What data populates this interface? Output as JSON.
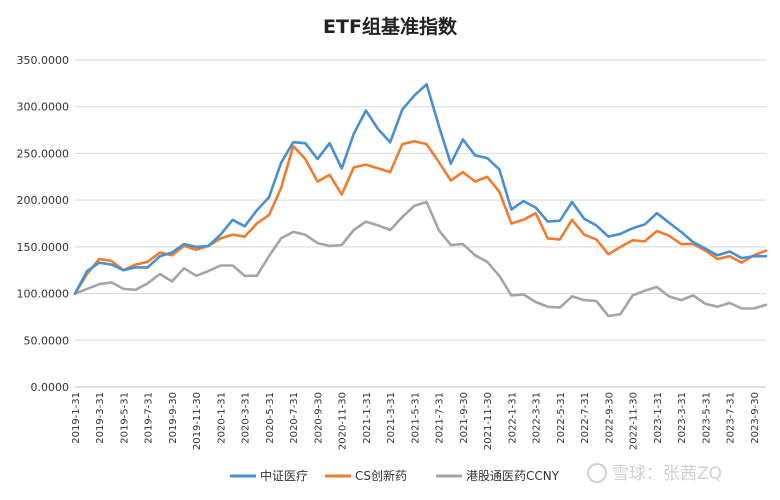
{
  "chart_data": {
    "type": "line",
    "title": "ETF组基准指数",
    "xlabel": "",
    "ylabel": "",
    "ylim": [
      0,
      350
    ],
    "y_ticks": [
      0,
      50,
      100,
      150,
      200,
      250,
      300,
      350
    ],
    "y_tick_labels": [
      "0.0000",
      "50.0000",
      "100.0000",
      "150.0000",
      "200.0000",
      "250.0000",
      "300.0000",
      "350.0000"
    ],
    "grid": true,
    "legend_position": "bottom",
    "x_labels": [
      "2019-1-31",
      "2019-3-31",
      "2019-5-31",
      "2019-7-31",
      "2019-9-30",
      "2019-11-30",
      "2020-1-31",
      "2020-3-31",
      "2020-5-31",
      "2020-7-31",
      "2020-9-30",
      "2020-11-30",
      "2021-1-31",
      "2021-3-31",
      "2021-5-31",
      "2021-7-31",
      "2021-9-30",
      "2021-11-30",
      "2022-1-31",
      "2022-3-31",
      "2022-5-31",
      "2022-7-31",
      "2022-9-30",
      "2022-11-30",
      "2023-1-31",
      "2023-3-31",
      "2023-5-31",
      "2023-7-31",
      "2023-9-30"
    ],
    "series": [
      {
        "name": "中证医疗",
        "color": "#4a8fd0",
        "values": [
          100,
          124,
          133,
          131,
          125,
          128,
          128,
          140,
          144,
          153,
          150,
          151,
          163,
          179,
          172,
          189,
          203,
          240,
          262,
          261,
          244,
          261,
          234,
          271,
          296,
          276,
          262,
          297,
          312,
          324,
          280,
          239,
          265,
          248,
          245,
          233,
          190,
          199,
          192,
          177,
          178,
          198,
          180,
          173,
          161,
          164,
          170,
          174,
          186,
          176,
          166,
          155,
          148,
          141,
          145,
          138,
          140,
          140
        ]
      },
      {
        "name": "CS创新药",
        "color": "#ee7d31",
        "values": [
          100,
          121,
          137,
          135,
          125,
          131,
          134,
          144,
          141,
          151,
          147,
          151,
          159,
          163,
          161,
          175,
          184,
          213,
          258,
          244,
          220,
          227,
          206,
          235,
          238,
          234,
          230,
          260,
          263,
          260,
          241,
          221,
          230,
          220,
          225,
          209,
          175,
          179,
          186,
          159,
          158,
          179,
          163,
          158,
          142,
          150,
          157,
          156,
          167,
          162,
          153,
          153,
          146,
          137,
          140,
          133,
          141,
          146
        ]
      },
      {
        "name": "港股通医药CCNY",
        "color": "#a5a5a5",
        "values": [
          100,
          105,
          110,
          112,
          105,
          104,
          111,
          121,
          113,
          127,
          119,
          124,
          130,
          130,
          119,
          119,
          140,
          159,
          166,
          163,
          154,
          151,
          152,
          168,
          177,
          173,
          168,
          182,
          194,
          198,
          168,
          152,
          153,
          141,
          134,
          119,
          98,
          99,
          91,
          86,
          85,
          97,
          93,
          92,
          76,
          78,
          98,
          103,
          107,
          97,
          93,
          98,
          89,
          86,
          90,
          84,
          84,
          88
        ]
      }
    ]
  },
  "watermark": {
    "text": "雪球：张茜ZQ"
  }
}
